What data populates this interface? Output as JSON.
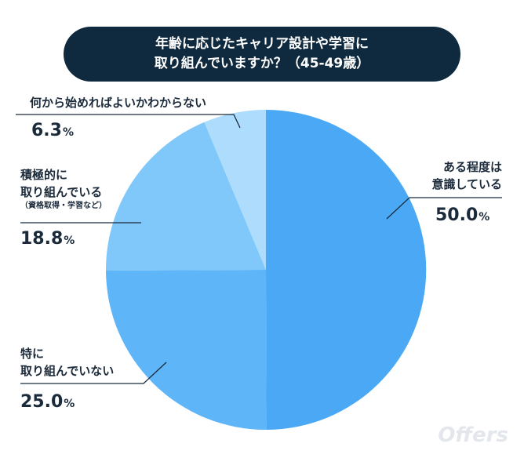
{
  "title": {
    "line1": "年齢に応じたキャリア設計や学習に",
    "line2": "取り組んでいますか？（45-49歳）"
  },
  "chart_data": {
    "type": "pie",
    "slices": [
      {
        "label_lines": [
          "ある程度は",
          "意識している"
        ],
        "value": 50.0,
        "pct": "50.0",
        "color": "#4aa8f5"
      },
      {
        "label_lines": [
          "特に",
          "取り組んでいない"
        ],
        "value": 25.0,
        "pct": "25.0",
        "color": "#5eb5f7"
      },
      {
        "label_lines": [
          "積極的に",
          "取り組んでいる"
        ],
        "note": "（資格取得・学習など）",
        "value": 18.8,
        "pct": "18.8",
        "color": "#80c8fa"
      },
      {
        "label_lines": [
          "何から始めればよいかわからない"
        ],
        "value": 6.3,
        "pct": "6.3",
        "color": "#aedcfd"
      }
    ],
    "unit": "%"
  },
  "watermark": "Offers"
}
